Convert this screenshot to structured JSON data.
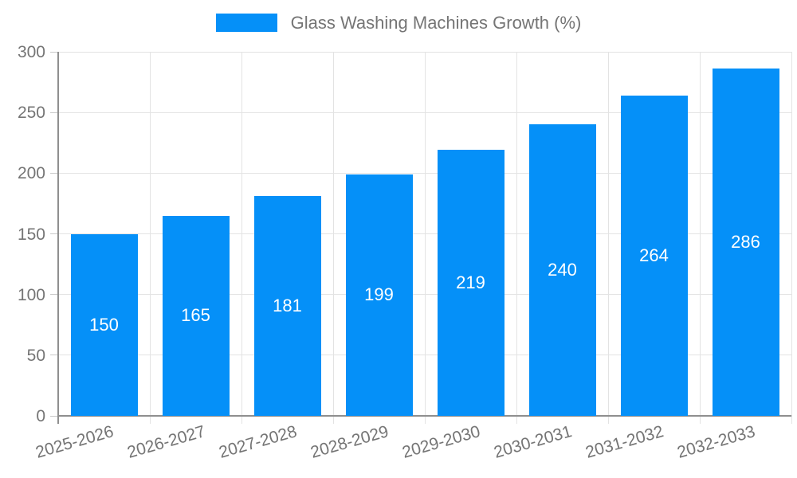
{
  "chart_data": {
    "type": "bar",
    "title": "Glass Washing Machines Growth (%)",
    "categories": [
      "2025-2026",
      "2026-2027",
      "2027-2028",
      "2028-2029",
      "2029-2030",
      "2030-2031",
      "2031-2032",
      "2032-2033"
    ],
    "values": [
      150,
      165,
      181,
      199,
      219,
      240,
      264,
      286
    ],
    "xlabel": "",
    "ylabel": "",
    "ylim": [
      0,
      300
    ],
    "yticks": [
      0,
      50,
      100,
      150,
      200,
      250,
      300
    ],
    "grid": true,
    "legend_position": "top-center",
    "bar_label_position": "inside-center",
    "x_tick_rotation_deg": -16,
    "colors": {
      "bar": "#0590f8",
      "bar_label": "#ffffff",
      "grid": "#e3e3e3",
      "tick": "#c9c9c9",
      "axis": "#8f8f8f",
      "text": "#757575",
      "background": "#ffffff"
    }
  }
}
